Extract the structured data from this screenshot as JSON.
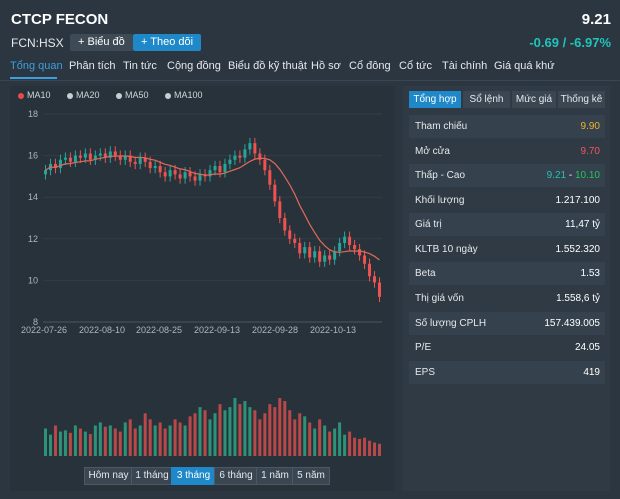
{
  "header": {
    "title": "CTCP FECON",
    "price": "9.21",
    "code": "FCN:HSX",
    "chart_button": "Biểu đồ",
    "follow_button": "Theo dõi",
    "change": "-0.69 / -6.97%"
  },
  "tabs": [
    "Tổng quan",
    "Phân tích",
    "Tin tức",
    "Cộng đồng",
    "Biểu đồ kỹ thuật",
    "Hồ sơ",
    "Cổ đông",
    "Cổ tức",
    "Tài chính",
    "Giá quá khứ"
  ],
  "legend": [
    {
      "label": "MA10",
      "color": "#e84b4b"
    },
    {
      "label": "MA20",
      "color": "#c8ced3"
    },
    {
      "label": "MA50",
      "color": "#c8ced3"
    },
    {
      "label": "MA100",
      "color": "#c8ced3"
    }
  ],
  "ranges": [
    "Hôm nay",
    "1 tháng",
    "3 tháng",
    "6 tháng",
    "1 năm",
    "5 năm"
  ],
  "active_range": "3 tháng",
  "panel": {
    "tabs": [
      "Tổng hợp",
      "Sổ lệnh",
      "Mức giá",
      "Thống kê"
    ],
    "rows": [
      {
        "label": "Tham chiếu",
        "value": "9.90",
        "color": "#f0b429"
      },
      {
        "label": "Mở cửa",
        "value": "9.70",
        "color": "#f25757"
      },
      {
        "label": "Thấp - Cao",
        "value_low": "9.21",
        "sep": " - ",
        "value_high": "10.10",
        "low_color": "#20c4b8",
        "high_color": "#22c55e"
      },
      {
        "label": "Khối lượng",
        "value": "1.217.100"
      },
      {
        "label": "Giá trị",
        "value": "11,47 tỷ"
      },
      {
        "label": "KLTB 10 ngày",
        "value": "1.552.320"
      },
      {
        "label": "Beta",
        "value": "1.53"
      },
      {
        "label": "Thị giá vốn",
        "value": "1.558,6 tỷ"
      },
      {
        "label": "Số lượng CPLH",
        "value": "157.439.005"
      },
      {
        "label": "P/E",
        "value": "24.05"
      },
      {
        "label": "EPS",
        "value": "419"
      }
    ]
  },
  "chart_data": {
    "type": "candlestick",
    "y_ticks": [
      "18",
      "16",
      "14",
      "12",
      "10",
      "8"
    ],
    "ylim": [
      8,
      18
    ],
    "x_ticks": [
      "2022-07-26",
      "2022-08-10",
      "2022-08-25",
      "2022-09-13",
      "2022-09-28",
      "2022-10-13"
    ],
    "colors": {
      "up": "#26a69a",
      "down": "#ef5350",
      "ma10": "#e06a5a"
    },
    "close": [
      15.3,
      15.6,
      15.4,
      15.8,
      15.9,
      15.7,
      16.0,
      15.9,
      16.1,
      15.8,
      16.0,
      16.1,
      15.9,
      16.2,
      16.0,
      15.8,
      16.0,
      15.7,
      15.6,
      15.9,
      15.7,
      15.4,
      15.5,
      15.2,
      15.0,
      15.3,
      15.1,
      14.9,
      15.2,
      15.0,
      14.8,
      15.1,
      15.0,
      15.3,
      15.5,
      15.2,
      15.6,
      15.8,
      16.0,
      15.9,
      16.3,
      16.6,
      16.1,
      15.8,
      15.3,
      14.6,
      13.8,
      13.0,
      12.4,
      12.0,
      11.8,
      11.3,
      11.6,
      11.1,
      11.4,
      10.9,
      11.2,
      11.0,
      11.4,
      11.8,
      12.1,
      11.7,
      11.5,
      11.2,
      10.8,
      10.2,
      9.9,
      9.21
    ],
    "volume": [
      0.45,
      0.35,
      0.5,
      0.4,
      0.42,
      0.38,
      0.5,
      0.45,
      0.4,
      0.36,
      0.5,
      0.55,
      0.48,
      0.5,
      0.45,
      0.4,
      0.55,
      0.6,
      0.45,
      0.5,
      0.7,
      0.6,
      0.5,
      0.55,
      0.45,
      0.5,
      0.6,
      0.55,
      0.5,
      0.65,
      0.7,
      0.8,
      0.75,
      0.6,
      0.7,
      0.85,
      0.75,
      0.8,
      0.95,
      0.85,
      0.9,
      0.8,
      0.75,
      0.6,
      0.7,
      0.85,
      0.8,
      0.95,
      0.9,
      0.75,
      0.6,
      0.7,
      0.65,
      0.55,
      0.45,
      0.6,
      0.5,
      0.4,
      0.45,
      0.55,
      0.35,
      0.4,
      0.3,
      0.28,
      0.3,
      0.25,
      0.22,
      0.2
    ]
  }
}
